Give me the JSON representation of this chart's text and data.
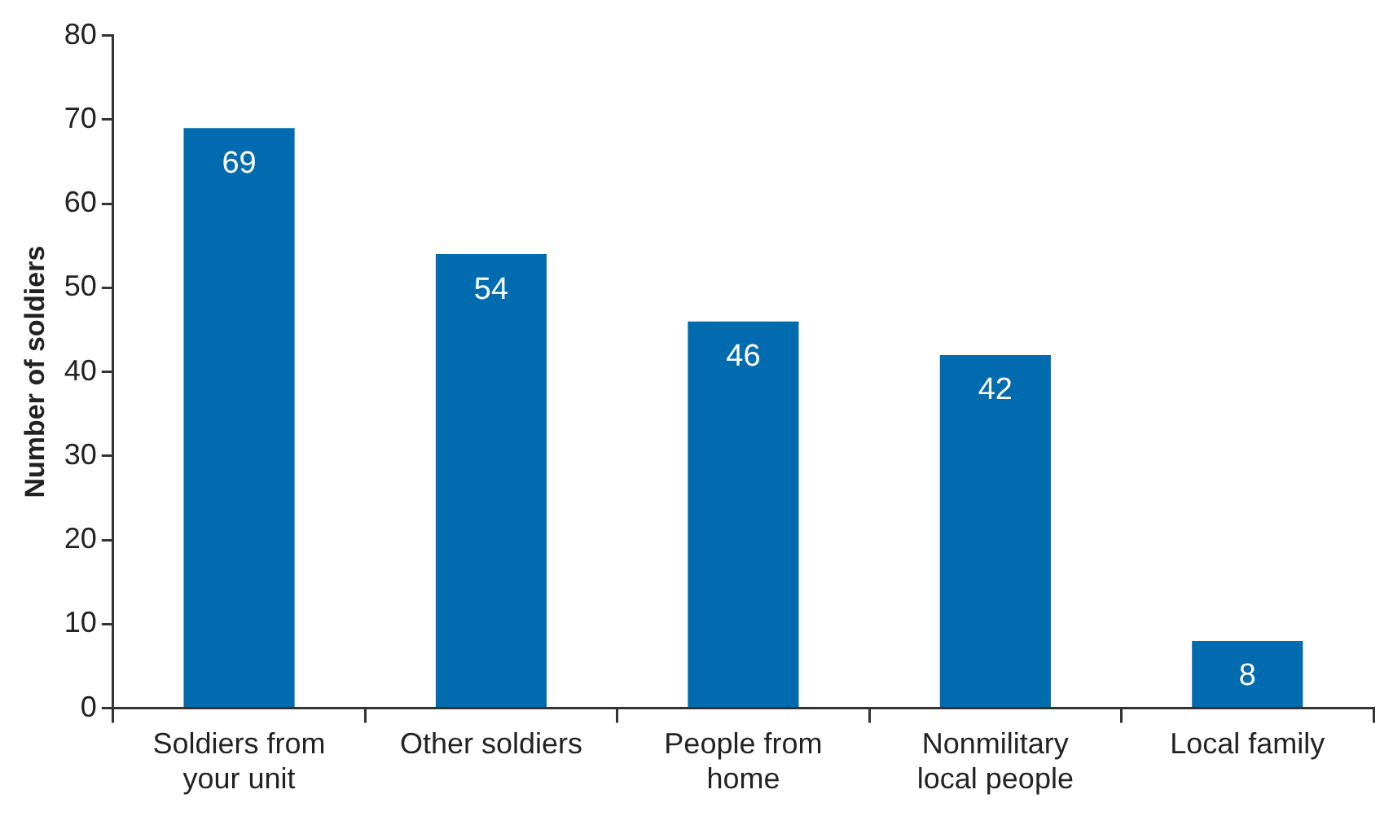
{
  "chart_data": {
    "type": "bar",
    "ylabel": "Number of soldiers",
    "categories": [
      "Soldiers from your unit",
      "Other soldiers",
      "People from home",
      "Nonmilitary local people",
      "Local family"
    ],
    "values": [
      69,
      54,
      46,
      42,
      8
    ],
    "color": "#006bae",
    "ylim": [
      0,
      80
    ],
    "yticks": [
      0,
      10,
      20,
      30,
      40,
      50,
      60,
      70,
      80
    ],
    "grid": false,
    "legend": false,
    "data_labels": true
  }
}
